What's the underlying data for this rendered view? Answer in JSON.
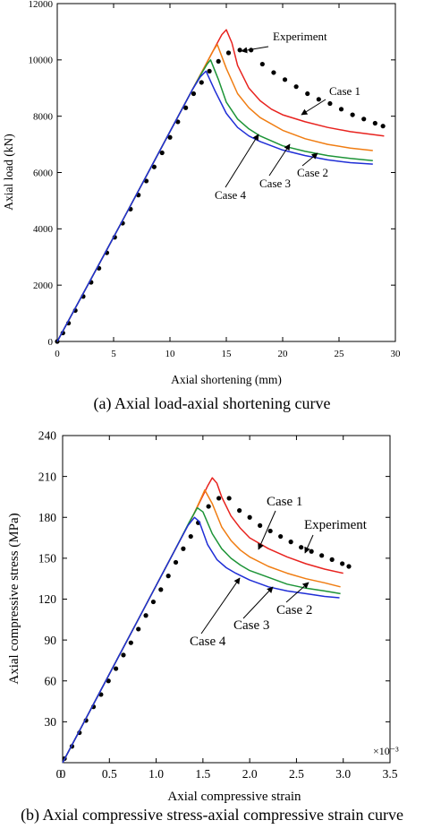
{
  "captions": {
    "a": "(a) Axial load-axial shortening curve",
    "b": "(b) Axial compressive stress-axial compressive strain curve"
  },
  "colors": {
    "Experiment": "#000000",
    "Case 1": "#e8231f",
    "Case 2": "#f07d12",
    "Case 3": "#1d9437",
    "Case 4": "#1f2ed6"
  },
  "chart_data": [
    {
      "type": "line",
      "xlabel": "Axial shortening (mm)",
      "ylabel": "Axial load (kN)",
      "xlim": [
        0,
        30
      ],
      "ylim": [
        0,
        12000
      ],
      "xticks": [
        0,
        5,
        10,
        15,
        20,
        25,
        30
      ],
      "yticks": [
        0,
        2000,
        4000,
        6000,
        8000,
        10000,
        12000
      ],
      "tick_labels_x": [
        "0",
        "5",
        "10",
        "15",
        "20",
        "25",
        "30"
      ],
      "tick_labels_y": [
        "0",
        "2000",
        "4000",
        "6000",
        "8000",
        "10000",
        "12000"
      ],
      "grid": false,
      "series": [
        {
          "name": "Experiment",
          "style": "dots",
          "x": [
            0,
            0.5,
            1,
            1.6,
            2.3,
            3,
            3.7,
            4.4,
            5.1,
            5.8,
            6.5,
            7.2,
            7.9,
            8.6,
            9.3,
            10,
            10.7,
            11.4,
            12.1,
            12.8,
            13.5,
            14.3,
            15.2,
            16.2,
            17.2,
            18.2,
            19.2,
            20.2,
            21.2,
            22.2,
            23.2,
            24.2,
            25.2,
            26.2,
            27.2,
            28.2,
            28.9
          ],
          "y": [
            0,
            300,
            650,
            1100,
            1600,
            2100,
            2600,
            3150,
            3700,
            4200,
            4700,
            5200,
            5700,
            6200,
            6700,
            7250,
            7800,
            8300,
            8800,
            9200,
            9600,
            9950,
            10250,
            10350,
            10350,
            9850,
            9550,
            9300,
            9050,
            8800,
            8600,
            8450,
            8250,
            8050,
            7900,
            7750,
            7650
          ]
        },
        {
          "name": "Case 1",
          "x": [
            0,
            2,
            4,
            6,
            8,
            10,
            12,
            13,
            14,
            14.6,
            15,
            15.5,
            16,
            17,
            18,
            19,
            20,
            22,
            24,
            26,
            28,
            29
          ],
          "y": [
            0,
            1480,
            2960,
            4450,
            5950,
            7450,
            8950,
            9700,
            10450,
            10900,
            11070,
            10600,
            9800,
            9000,
            8550,
            8250,
            8050,
            7800,
            7600,
            7450,
            7350,
            7300
          ]
        },
        {
          "name": "Case 2",
          "x": [
            0,
            2,
            4,
            6,
            8,
            10,
            12,
            13,
            13.8,
            14.2,
            15,
            16,
            17,
            18,
            20,
            22,
            24,
            26,
            28
          ],
          "y": [
            0,
            1480,
            2960,
            4450,
            5950,
            7450,
            8950,
            9700,
            10300,
            10550,
            9700,
            8800,
            8300,
            7950,
            7500,
            7200,
            7000,
            6870,
            6780
          ]
        },
        {
          "name": "Case 3",
          "x": [
            0,
            2,
            4,
            6,
            8,
            10,
            12,
            12.7,
            13.3,
            13.6,
            14.3,
            15,
            16,
            17,
            18,
            20,
            22,
            24,
            26,
            28
          ],
          "y": [
            0,
            1480,
            2960,
            4450,
            5950,
            7450,
            8950,
            9450,
            9850,
            10000,
            9300,
            8500,
            7900,
            7550,
            7300,
            6950,
            6750,
            6600,
            6500,
            6420
          ]
        },
        {
          "name": "Case 4",
          "x": [
            0,
            2,
            4,
            6,
            8,
            10,
            12,
            12.7,
            13.2,
            14,
            15,
            16,
            17,
            18,
            20,
            22,
            24,
            26,
            28
          ],
          "y": [
            0,
            1480,
            2960,
            4450,
            5950,
            7450,
            8950,
            9400,
            9600,
            8900,
            8100,
            7600,
            7300,
            7100,
            6800,
            6600,
            6450,
            6350,
            6300
          ]
        }
      ],
      "annotations": [
        {
          "text": "Experiment",
          "series": "Experiment"
        },
        {
          "text": "Case 1",
          "series": "Case 1"
        },
        {
          "text": "Case 2",
          "series": "Case 2"
        },
        {
          "text": "Case 3",
          "series": "Case 3"
        },
        {
          "text": "Case 4",
          "series": "Case 4"
        }
      ]
    },
    {
      "type": "line",
      "xlabel": "Axial compressive strain",
      "ylabel": "Axial compressive stress (MPa)",
      "axis_multiplier": "×10⁻³",
      "xlim": [
        0,
        3.5
      ],
      "ylim": [
        0,
        240
      ],
      "xticks": [
        0,
        0.5,
        1.0,
        1.5,
        2.0,
        2.5,
        3.0,
        3.5
      ],
      "yticks": [
        30,
        60,
        90,
        120,
        150,
        180,
        210,
        240
      ],
      "tick_labels_x": [
        "0",
        "0.5",
        "1.0",
        "1.5",
        "2.0",
        "2.5",
        "3.0",
        "3.5"
      ],
      "tick_labels_y": [
        "30",
        "60",
        "90",
        "120",
        "150",
        "180",
        "210",
        "240"
      ],
      "grid": false,
      "series": [
        {
          "name": "Experiment",
          "style": "dots",
          "x": [
            0.02,
            0.1,
            0.18,
            0.25,
            0.33,
            0.41,
            0.49,
            0.57,
            0.65,
            0.73,
            0.81,
            0.89,
            0.97,
            1.05,
            1.13,
            1.21,
            1.29,
            1.37,
            1.45,
            1.56,
            1.67,
            1.78,
            1.89,
            2.0,
            2.11,
            2.22,
            2.33,
            2.44,
            2.55,
            2.66,
            2.77,
            2.88,
            2.99,
            3.06
          ],
          "y": [
            3,
            12,
            22,
            31,
            41,
            50,
            60,
            69,
            79,
            88,
            98,
            108,
            118,
            127,
            137,
            147,
            157,
            166,
            176,
            188,
            194,
            194,
            185,
            180,
            174,
            170,
            166,
            162,
            158,
            155,
            152,
            149,
            146,
            144
          ]
        },
        {
          "name": "Case 1",
          "x": [
            0,
            0.2,
            0.4,
            0.6,
            0.8,
            1.0,
            1.2,
            1.4,
            1.55,
            1.6,
            1.65,
            1.7,
            1.8,
            1.9,
            2.0,
            2.2,
            2.4,
            2.6,
            2.8,
            3.0
          ],
          "y": [
            0,
            26,
            52,
            78,
            104,
            130,
            156,
            182,
            203,
            209,
            205,
            195,
            181,
            172,
            165,
            157,
            151,
            146,
            142,
            139
          ]
        },
        {
          "name": "Case 2",
          "x": [
            0,
            0.2,
            0.4,
            0.6,
            0.8,
            1.0,
            1.2,
            1.4,
            1.48,
            1.52,
            1.6,
            1.7,
            1.8,
            1.9,
            2.0,
            2.2,
            2.4,
            2.6,
            2.8,
            2.97
          ],
          "y": [
            0,
            26,
            52,
            78,
            104,
            130,
            156,
            182,
            194,
            200,
            190,
            173,
            163,
            156,
            151,
            144,
            139,
            135,
            132,
            129
          ]
        },
        {
          "name": "Case 3",
          "x": [
            0,
            0.2,
            0.4,
            0.6,
            0.8,
            1.0,
            1.2,
            1.35,
            1.44,
            1.5,
            1.6,
            1.7,
            1.8,
            1.9,
            2.0,
            2.2,
            2.4,
            2.6,
            2.8,
            2.97
          ],
          "y": [
            0,
            26,
            52,
            78,
            104,
            130,
            156,
            176,
            187,
            184,
            168,
            157,
            150,
            145,
            141,
            136,
            131,
            128,
            126,
            124
          ]
        },
        {
          "name": "Case 4",
          "x": [
            0,
            0.2,
            0.4,
            0.6,
            0.8,
            1.0,
            1.2,
            1.34,
            1.41,
            1.46,
            1.55,
            1.65,
            1.75,
            1.85,
            2.0,
            2.2,
            2.4,
            2.6,
            2.8,
            2.96
          ],
          "y": [
            0,
            26,
            52,
            78,
            104,
            130,
            156,
            174,
            180,
            177,
            160,
            149,
            143,
            139,
            134,
            129,
            126,
            124,
            122,
            121
          ]
        }
      ],
      "annotations": [
        {
          "text": "Case 1",
          "series": "Case 1"
        },
        {
          "text": "Experiment",
          "series": "Experiment"
        },
        {
          "text": "Case 2",
          "series": "Case 2"
        },
        {
          "text": "Case 3",
          "series": "Case 3"
        },
        {
          "text": "Case 4",
          "series": "Case 4"
        }
      ]
    }
  ]
}
